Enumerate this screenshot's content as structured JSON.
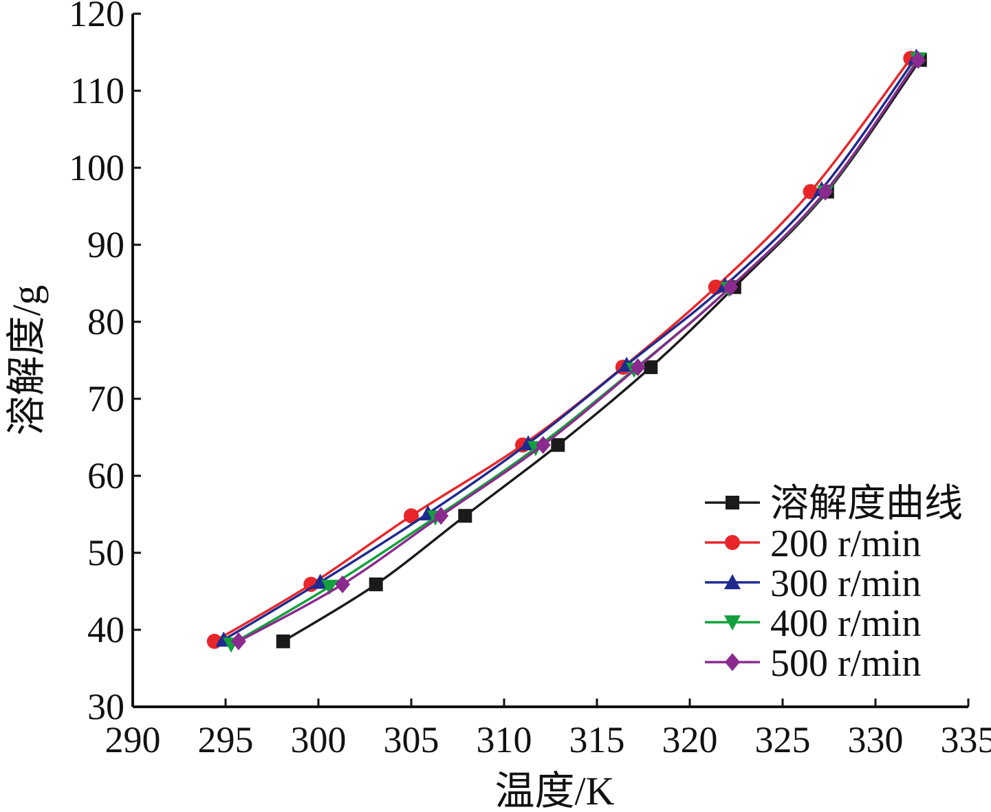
{
  "chart_data": {
    "type": "line",
    "xlabel": "温度/K",
    "ylabel": "溶解度/g",
    "xlim": [
      290,
      335
    ],
    "ylim": [
      30,
      120
    ],
    "x_ticks": [
      "290",
      "295",
      "300",
      "305",
      "310",
      "315",
      "320",
      "325",
      "330",
      "335"
    ],
    "y_ticks": [
      "30",
      "40",
      "50",
      "60",
      "70",
      "80",
      "90",
      "100",
      "110",
      "120"
    ],
    "grid": false,
    "legend_position": "bottom-right",
    "series": [
      {
        "name": "溶解度曲线",
        "color": "#1a1a1a",
        "marker": "square",
        "x": [
          298.1,
          303.1,
          307.9,
          312.9,
          317.9,
          322.4,
          327.4,
          332.4
        ],
        "y": [
          38.5,
          45.9,
          54.8,
          64.0,
          74.1,
          84.5,
          96.9,
          114.0
        ]
      },
      {
        "name": "200 r/min",
        "color": "#e8262a",
        "marker": "circle",
        "x": [
          294.4,
          299.6,
          305.0,
          311.0,
          316.4,
          321.4,
          326.5,
          331.9
        ],
        "y": [
          38.5,
          45.9,
          54.8,
          64.0,
          74.1,
          84.5,
          96.9,
          114.2
        ]
      },
      {
        "name": "300 r/min",
        "color": "#1f2a8f",
        "marker": "triangle-up",
        "x": [
          294.9,
          300.1,
          305.9,
          311.3,
          316.6,
          321.9,
          327.1,
          332.2
        ],
        "y": [
          38.7,
          46.2,
          55.1,
          64.2,
          74.4,
          84.7,
          97.2,
          114.4
        ]
      },
      {
        "name": "400 r/min",
        "color": "#12a03c",
        "marker": "triangle-down",
        "x": [
          295.3,
          300.6,
          306.3,
          311.7,
          317.0,
          322.1,
          327.3,
          332.3
        ],
        "y": [
          38.1,
          45.6,
          54.6,
          63.6,
          73.8,
          84.3,
          96.8,
          114.1
        ]
      },
      {
        "name": "500 r/min",
        "color": "#8a2a8e",
        "marker": "diamond",
        "x": [
          295.7,
          301.3,
          306.6,
          312.1,
          317.2,
          322.2,
          327.3,
          332.3
        ],
        "y": [
          38.5,
          45.9,
          54.8,
          64.0,
          74.1,
          84.5,
          96.9,
          114.0
        ]
      }
    ]
  }
}
